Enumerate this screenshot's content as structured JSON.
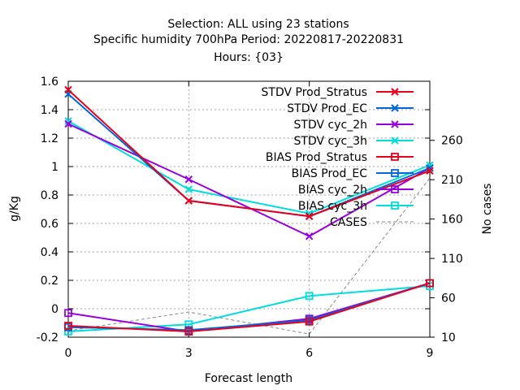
{
  "chart_data": {
    "type": "line",
    "title_lines": [
      "Selection: ALL using    23 stations",
      "Specific humidity 700hPa   Period: 20220817-20220831",
      "Hours: {03}"
    ],
    "xlabel": "Forecast length",
    "ylabel": "g/Kg",
    "y2label": "No cases",
    "x": [
      0,
      3,
      6,
      9
    ],
    "xticks": [
      0,
      3,
      6,
      9
    ],
    "xlim": [
      0,
      9
    ],
    "ylim": [
      -0.2,
      1.6
    ],
    "yticks": [
      -0.2,
      0,
      0.2,
      0.4,
      0.6,
      0.8,
      1,
      1.2,
      1.4,
      1.6
    ],
    "ytick_labels": [
      "-0.2",
      "0",
      "0.2",
      "0.4",
      "0.6",
      "0.8",
      "1",
      "1.2",
      "1.4",
      "1.6"
    ],
    "y2lim": [
      10,
      335
    ],
    "y2ticks": [
      10,
      60,
      110,
      160,
      210,
      260
    ],
    "grid": true,
    "legend_position": "top-right",
    "series": [
      {
        "name": "STDV Prod_Stratus",
        "color": "#e8001c",
        "marker": "x",
        "axis": "y1",
        "values": [
          1.54,
          0.76,
          0.65,
          0.97
        ]
      },
      {
        "name": "STDV Prod_EC",
        "color": "#0066dd",
        "marker": "x",
        "axis": "y1",
        "values": [
          1.51,
          0.76,
          0.65,
          0.99
        ]
      },
      {
        "name": "STDV cyc_2h",
        "color": "#9900dd",
        "marker": "x",
        "axis": "y1",
        "values": [
          1.3,
          0.91,
          0.51,
          0.99
        ]
      },
      {
        "name": "STDV cyc_3h",
        "color": "#00dddd",
        "marker": "x",
        "axis": "y1",
        "values": [
          1.32,
          0.84,
          0.67,
          1.01
        ]
      },
      {
        "name": "BIAS Prod_Stratus",
        "color": "#e8001c",
        "marker": "square",
        "axis": "y1",
        "values": [
          -0.12,
          -0.16,
          -0.09,
          0.18
        ]
      },
      {
        "name": "BIAS Prod_EC",
        "color": "#0066dd",
        "marker": "square",
        "axis": "y1",
        "values": [
          -0.13,
          -0.15,
          -0.08,
          0.18
        ]
      },
      {
        "name": "BIAS cyc_2h",
        "color": "#9900dd",
        "marker": "square",
        "axis": "y1",
        "values": [
          -0.03,
          -0.16,
          -0.07,
          0.18
        ]
      },
      {
        "name": "BIAS cyc_3h",
        "color": "#00dddd",
        "marker": "square",
        "axis": "y1",
        "values": [
          -0.16,
          -0.11,
          0.09,
          0.16
        ]
      },
      {
        "name": "CASES",
        "color": "#888888",
        "marker": "none",
        "dashed": true,
        "axis": "y2",
        "values": [
          18,
          42,
          14,
          212
        ]
      }
    ]
  }
}
